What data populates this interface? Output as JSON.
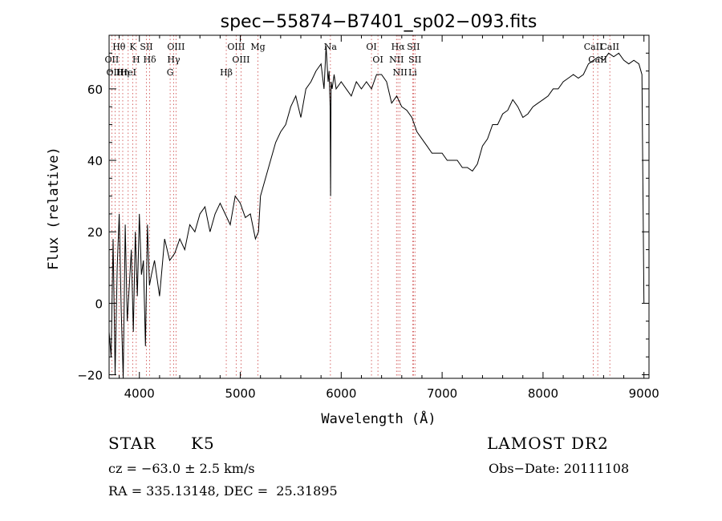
{
  "chart_data": {
    "type": "line",
    "title": "spec−55874−B7401_sp02−093.fits",
    "xlabel": "Wavelength (Å)",
    "ylabel": "Flux (relative)",
    "xlim": [
      3700,
      9050
    ],
    "ylim": [
      -21,
      75
    ],
    "xticks": [
      4000,
      5000,
      6000,
      7000,
      8000,
      9000
    ],
    "xtick_labels": [
      "4000",
      "5000",
      "6000",
      "7000",
      "8000",
      "9000"
    ],
    "yticks": [
      -20,
      0,
      20,
      40,
      60
    ],
    "ytick_labels": [
      "−20",
      "0",
      "20",
      "40",
      "60"
    ],
    "grid": false,
    "series": [
      {
        "x": [
          3700,
          3720,
          3740,
          3760,
          3780,
          3800,
          3820,
          3840,
          3860,
          3880,
          3900,
          3920,
          3940,
          3960,
          3980,
          4000,
          4020,
          4040,
          4060,
          4080,
          4100,
          4120,
          4150,
          4200,
          4250,
          4300,
          4350,
          4400,
          4450,
          4500,
          4550,
          4600,
          4650,
          4700,
          4750,
          4800,
          4850,
          4900,
          4950,
          5000,
          5050,
          5100,
          5150,
          5180,
          5200,
          5220,
          5250,
          5300,
          5350,
          5400,
          5450,
          5500,
          5550,
          5600,
          5650,
          5700,
          5750,
          5800,
          5830,
          5850,
          5870,
          5880,
          5890,
          5895,
          5900,
          5910,
          5930,
          5950,
          6000,
          6050,
          6100,
          6150,
          6200,
          6250,
          6300,
          6350,
          6400,
          6450,
          6500,
          6550,
          6600,
          6650,
          6700,
          6750,
          6800,
          6850,
          6900,
          6950,
          7000,
          7050,
          7100,
          7150,
          7200,
          7250,
          7300,
          7350,
          7400,
          7450,
          7500,
          7550,
          7600,
          7650,
          7700,
          7750,
          7800,
          7850,
          7900,
          7950,
          8000,
          8050,
          8100,
          8150,
          8200,
          8250,
          8300,
          8350,
          8400,
          8450,
          8500,
          8550,
          8600,
          8650,
          8700,
          8750,
          8800,
          8850,
          8900,
          8950,
          8980,
          9000
        ],
        "y": [
          -8,
          -15,
          18,
          -20,
          10,
          25,
          -2,
          -22,
          22,
          -5,
          5,
          15,
          -8,
          20,
          2,
          25,
          8,
          12,
          -12,
          22,
          5,
          8,
          12,
          2,
          18,
          12,
          14,
          18,
          15,
          22,
          20,
          25,
          27,
          20,
          25,
          28,
          25,
          22,
          30,
          28,
          24,
          25,
          18,
          20,
          30,
          32,
          35,
          40,
          45,
          48,
          50,
          55,
          58,
          52,
          60,
          62,
          65,
          67,
          60,
          72,
          62,
          65,
          55,
          30,
          62,
          60,
          64,
          60,
          62,
          60,
          58,
          62,
          60,
          62,
          60,
          64,
          64,
          62,
          56,
          58,
          55,
          54,
          52,
          48,
          46,
          44,
          42,
          42,
          42,
          40,
          40,
          40,
          38,
          38,
          37,
          39,
          44,
          46,
          50,
          50,
          53,
          54,
          57,
          55,
          52,
          53,
          55,
          56,
          57,
          58,
          60,
          60,
          62,
          63,
          64,
          63,
          64,
          67,
          68,
          69,
          68,
          70,
          69,
          70,
          68,
          67,
          68,
          67,
          64,
          0
        ]
      }
    ],
    "lines": [
      {
        "label": "Hθ",
        "x": 3798
      },
      {
        "label": "OII",
        "x": 3727
      },
      {
        "label": "OIII",
        "x": 3760
      },
      {
        "label": "K",
        "x": 3934
      },
      {
        "label": "H",
        "x": 3969
      },
      {
        "label": "Hη",
        "x": 3835
      },
      {
        "label": "HeI",
        "x": 3889
      },
      {
        "label": "SII",
        "x": 4070
      },
      {
        "label": "Hδ",
        "x": 4102
      },
      {
        "label": "OIII",
        "x": 4363
      },
      {
        "label": "Hγ",
        "x": 4340
      },
      {
        "label": "G",
        "x": 4305
      },
      {
        "label": "OIII",
        "x": 4959
      },
      {
        "label": "OIII",
        "x": 5007
      },
      {
        "label": "Hβ",
        "x": 4861
      },
      {
        "label": "Mg",
        "x": 5175
      },
      {
        "label": "Na",
        "x": 5893
      },
      {
        "label": "OI",
        "x": 6300
      },
      {
        "label": "OI",
        "x": 6364
      },
      {
        "label": "Hα",
        "x": 6563
      },
      {
        "label": "NII",
        "x": 6548
      },
      {
        "label": "NII",
        "x": 6583
      },
      {
        "label": "SII",
        "x": 6716
      },
      {
        "label": "SII",
        "x": 6731
      },
      {
        "label": "Li",
        "x": 6708
      },
      {
        "label": "CaII",
        "x": 8498
      },
      {
        "label": "CaII",
        "x": 8542
      },
      {
        "label": "CaII",
        "x": 8662
      }
    ]
  },
  "info": {
    "obj_class": "STAR",
    "subclass": "K5",
    "survey": "LAMOST DR2",
    "cz": "cz = −63.0 ± 2.5 km/s",
    "obs_date": "Obs−Date: 20111108",
    "radec": "RA = 335.13148, DEC =  25.31895"
  }
}
